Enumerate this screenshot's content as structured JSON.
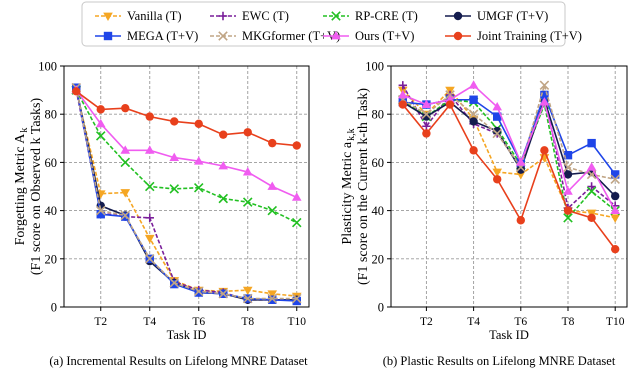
{
  "legend": {
    "placement": "top",
    "entries": [
      {
        "label": "Vanilla (T)",
        "color": "#f5a623",
        "marker": "triangle-down",
        "dash": "4,2"
      },
      {
        "label": "EWC (T)",
        "color": "#7a1f9a",
        "marker": "plus",
        "dash": "4,2"
      },
      {
        "label": "RP-CRE (T)",
        "color": "#22c022",
        "marker": "x",
        "dash": "4,2"
      },
      {
        "label": "UMGF (T+V)",
        "color": "#141c4e",
        "marker": "circle",
        "dash": ""
      },
      {
        "label": "MEGA (T+V)",
        "color": "#1f45e8",
        "marker": "square",
        "dash": ""
      },
      {
        "label": "MKGformer (T+V)",
        "color": "#c0a585",
        "marker": "x",
        "dash": "4,2"
      },
      {
        "label": "Ours (T+V)",
        "color": "#f05cf0",
        "marker": "triangle-up",
        "dash": ""
      },
      {
        "label": "Joint Training (T+V)",
        "color": "#e8401c",
        "marker": "circle",
        "dash": ""
      }
    ]
  },
  "chart_data": [
    {
      "type": "line",
      "panel": "left",
      "caption": "(a) Incremental Results on Lifelong MNRE Dataset",
      "xlabel": "Task ID",
      "ylabel_line1": "Forgetting Metric A",
      "ylabel_sub": "k",
      "ylabel_line2": "(F1 score on Observed k Tasks)",
      "xlim": [
        0.5,
        10.5
      ],
      "ylim": [
        0,
        100
      ],
      "x": [
        1,
        2,
        3,
        4,
        5,
        6,
        7,
        8,
        9,
        10
      ],
      "xticks": [
        2,
        4,
        6,
        8,
        10
      ],
      "xticklabels": [
        "T2",
        "T4",
        "T6",
        "T8",
        "T10"
      ],
      "yticks": [
        0,
        20,
        40,
        60,
        80,
        100
      ],
      "grid": true,
      "series": [
        {
          "name": "Vanilla (T)",
          "values": [
            90,
            47,
            47.5,
            28.5,
            11,
            7,
            6.5,
            7,
            5.5,
            4.5
          ]
        },
        {
          "name": "EWC (T)",
          "values": [
            90,
            39,
            37.5,
            37,
            10.5,
            7,
            6,
            3,
            3,
            3
          ]
        },
        {
          "name": "RP-CRE (T)",
          "values": [
            90,
            71,
            60,
            50,
            49,
            49.5,
            45,
            43.5,
            40,
            35
          ]
        },
        {
          "name": "UMGF (T+V)",
          "values": [
            91,
            42,
            38,
            19,
            10,
            6,
            5.5,
            3,
            3,
            3
          ]
        },
        {
          "name": "MEGA (T+V)",
          "values": [
            91,
            38.5,
            37.5,
            20,
            9.5,
            6,
            5.5,
            3.5,
            3,
            2.5
          ]
        },
        {
          "name": "MKGformer (T+V)",
          "values": [
            91,
            40,
            38,
            20,
            10,
            6.5,
            5.5,
            3.5,
            3.5,
            3.5
          ]
        },
        {
          "name": "Ours (T+V)",
          "values": [
            90,
            76,
            65,
            65,
            62,
            60.5,
            58.5,
            56,
            50,
            45.5
          ]
        },
        {
          "name": "Joint Training (T+V)",
          "values": [
            89.5,
            82,
            82.5,
            79,
            77,
            76,
            71.5,
            72.5,
            68,
            67
          ]
        }
      ]
    },
    {
      "type": "line",
      "panel": "right",
      "caption": "(b) Plastic Results on Lifelong MNRE Dataset",
      "xlabel": "Task ID",
      "ylabel_line1": "Plasticity Metric a",
      "ylabel_sub": "k,k",
      "ylabel_line2": "(F1 score on the Current k-th Task)",
      "xlim": [
        0.5,
        10.5
      ],
      "ylim": [
        0,
        100
      ],
      "x": [
        1,
        2,
        3,
        4,
        5,
        6,
        7,
        8,
        9,
        10
      ],
      "xticks": [
        2,
        4,
        6,
        8,
        10
      ],
      "xticklabels": [
        "T2",
        "T4",
        "T6",
        "T8",
        "T10"
      ],
      "yticks": [
        0,
        20,
        40,
        60,
        80,
        100
      ],
      "grid": true,
      "series": [
        {
          "name": "Vanilla (T)",
          "values": [
            90,
            80,
            90,
            78,
            56,
            55,
            62,
            40,
            39,
            37
          ]
        },
        {
          "name": "EWC (T)",
          "values": [
            92,
            75,
            88,
            76,
            72,
            58,
            88,
            41,
            50,
            42
          ]
        },
        {
          "name": "RP-CRE (T)",
          "values": [
            86,
            79,
            86,
            85,
            74,
            59,
            84,
            37,
            48,
            40
          ]
        },
        {
          "name": "UMGF (T+V)",
          "values": [
            85,
            79,
            85,
            77,
            73,
            57,
            86,
            55,
            56,
            46
          ]
        },
        {
          "name": "MEGA (T+V)",
          "values": [
            85,
            84,
            86,
            86,
            79,
            60,
            88,
            63,
            68,
            55
          ]
        },
        {
          "name": "MKGformer (T+V)",
          "values": [
            86,
            80,
            88,
            80,
            72,
            58,
            92,
            58,
            55,
            53
          ]
        },
        {
          "name": "Ours (T+V)",
          "values": [
            88,
            84,
            86,
            92,
            83,
            60,
            85,
            48,
            58,
            40
          ]
        },
        {
          "name": "Joint Training (T+V)",
          "values": [
            84,
            72,
            84,
            65,
            53,
            36,
            65,
            40,
            37,
            24
          ]
        }
      ]
    }
  ]
}
